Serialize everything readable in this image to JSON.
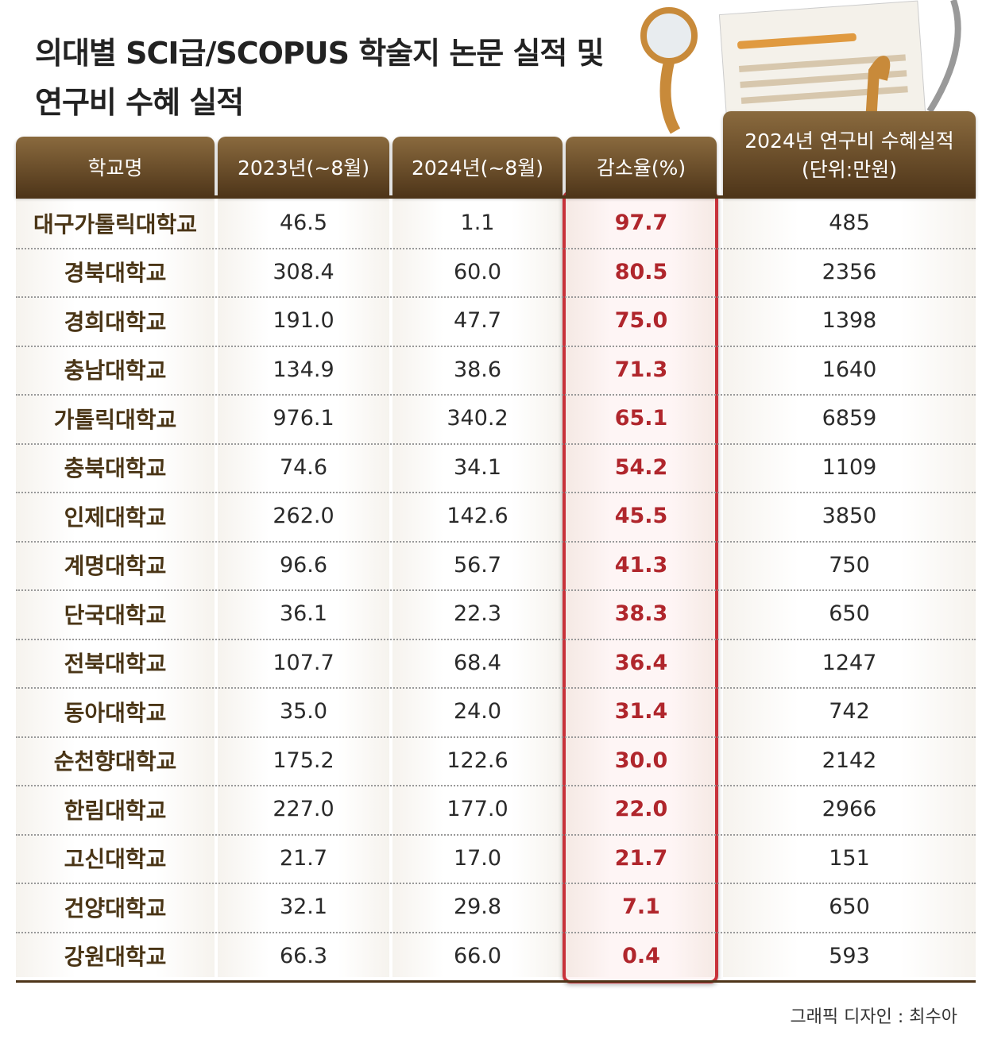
{
  "header": {
    "title": [
      "의대별 SCI급/SCOPUS 학술지 논문 실적 및",
      "연구비 수혜 실적"
    ]
  },
  "table": {
    "columns": [
      "학교명",
      "2023년(~8월)",
      "2024년(~8월)",
      "감소율(%)",
      "2024년 연구비 수혜실적"
    ],
    "unit": "(단위:만원)",
    "rows": [
      [
        "대구가톨릭대학교",
        "46.5",
        "1.1",
        "97.7",
        "485"
      ],
      [
        "경북대학교",
        "308.4",
        "60.0",
        "80.5",
        "2356"
      ],
      [
        "경희대학교",
        "191.0",
        "47.7",
        "75.0",
        "1398"
      ],
      [
        "충남대학교",
        "134.9",
        "38.6",
        "71.3",
        "1640"
      ],
      [
        "가톨릭대학교",
        "976.1",
        "340.2",
        "65.1",
        "6859"
      ],
      [
        "충북대학교",
        "74.6",
        "34.1",
        "54.2",
        "1109"
      ],
      [
        "인제대학교",
        "262.0",
        "142.6",
        "45.5",
        "3850"
      ],
      [
        "계명대학교",
        "96.6",
        "56.7",
        "41.3",
        "750"
      ],
      [
        "단국대학교",
        "36.1",
        "22.3",
        "38.3",
        "650"
      ],
      [
        "전북대학교",
        "107.7",
        "68.4",
        "36.4",
        "1247"
      ],
      [
        "동아대학교",
        "35.0",
        "24.0",
        "31.4",
        "742"
      ],
      [
        "순천향대학교",
        "175.2",
        "122.6",
        "30.0",
        "2142"
      ],
      [
        "한림대학교",
        "227.0",
        "177.0",
        "22.0",
        "2966"
      ],
      [
        "고신대학교",
        "21.7",
        "17.0",
        "21.7",
        "151"
      ],
      [
        "건양대학교",
        "32.1",
        "29.8",
        "7.1",
        "650"
      ],
      [
        "강원대학교",
        "66.3",
        "66.0",
        "0.4",
        "593"
      ]
    ]
  },
  "footer": {
    "credit": "그래픽 디자인 : 최수아"
  }
}
